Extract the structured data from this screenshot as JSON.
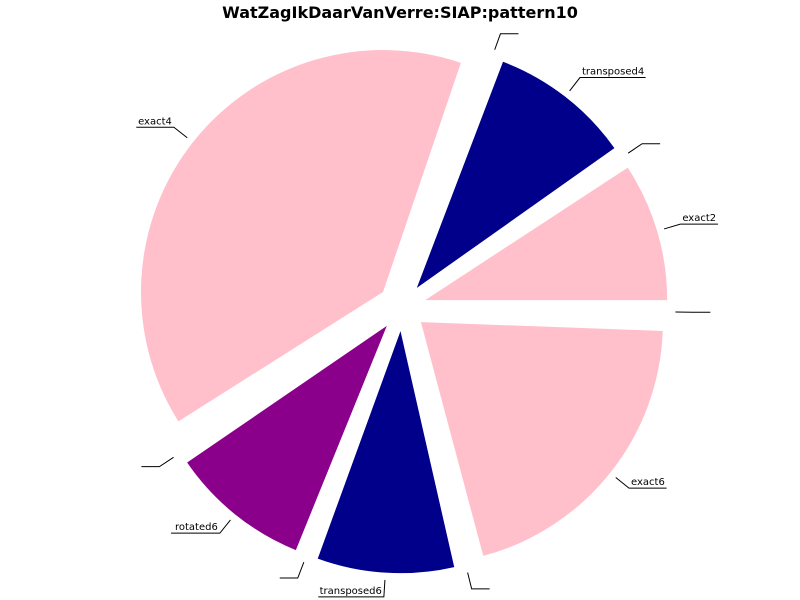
{
  "chart_data": {
    "type": "pie",
    "title": "WatZagIkDaarVanVerre:SIAP:pattern10",
    "start_angle_deg": 0,
    "direction": "counterclockwise",
    "exploded": true,
    "slices": [
      {
        "label": "exact2",
        "value": 9.5,
        "color": "#ffc0cb"
      },
      {
        "label": "",
        "value": 0.6,
        "color": "#ffffff"
      },
      {
        "label": "transposed4",
        "value": 9.7,
        "color": "#00008b"
      },
      {
        "label": "",
        "value": 0.6,
        "color": "#ffffff"
      },
      {
        "label": "exact4",
        "value": 40.4,
        "color": "#ffc0cb"
      },
      {
        "label": "",
        "value": 0.6,
        "color": "#ffffff"
      },
      {
        "label": "rotated6",
        "value": 9.6,
        "color": "#8b008b"
      },
      {
        "label": "",
        "value": 0.6,
        "color": "#ffffff"
      },
      {
        "label": "transposed6",
        "value": 9.4,
        "color": "#00008b"
      },
      {
        "label": "",
        "value": 0.6,
        "color": "#ffffff"
      },
      {
        "label": "exact6",
        "value": 20.9,
        "color": "#ffc0cb"
      },
      {
        "label": "",
        "value": 0.6,
        "color": "#ffffff"
      }
    ]
  }
}
